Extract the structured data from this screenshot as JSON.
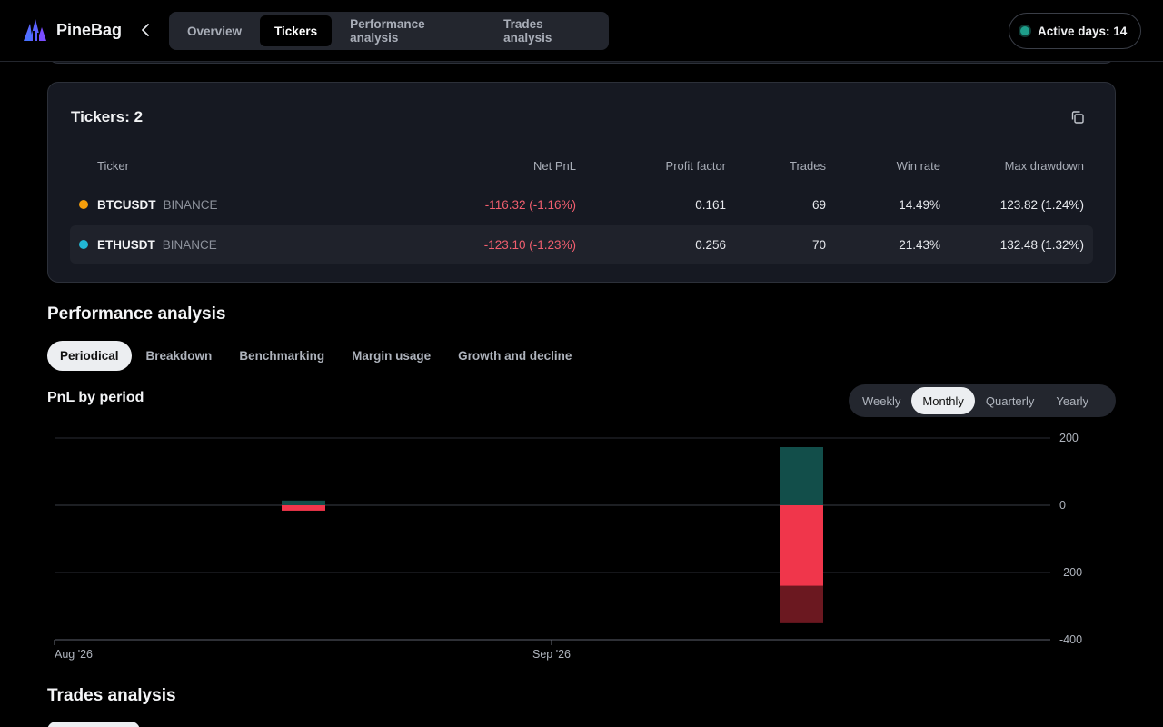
{
  "header": {
    "brand": "PineBag",
    "tabs": [
      {
        "label": "Overview",
        "active": false
      },
      {
        "label": "Tickers",
        "active": true
      },
      {
        "label": "Performance analysis",
        "active": false
      },
      {
        "label": "Trades analysis",
        "active": false
      }
    ],
    "active_days_label": "Active days: 14"
  },
  "tickers": {
    "title": "Tickers: 2",
    "columns": [
      "Ticker",
      "Net PnL",
      "Profit factor",
      "Trades",
      "Win rate",
      "Max drawdown"
    ],
    "rows": [
      {
        "symbol": "BTCUSDT",
        "exchange": "BINANCE",
        "dot_color": "#f59e0b",
        "net_pnl": "-116.32 (-1.16%)",
        "profit_factor": "0.161",
        "trades": "69",
        "win_rate": "14.49%",
        "max_drawdown": "123.82 (1.24%)"
      },
      {
        "symbol": "ETHUSDT",
        "exchange": "BINANCE",
        "dot_color": "#22b8d6",
        "net_pnl": "-123.10 (-1.23%)",
        "profit_factor": "0.256",
        "trades": "70",
        "win_rate": "21.43%",
        "max_drawdown": "132.48 (1.32%)"
      }
    ]
  },
  "performance": {
    "title": "Performance analysis",
    "tabs": [
      {
        "label": "Periodical",
        "active": true
      },
      {
        "label": "Breakdown",
        "active": false
      },
      {
        "label": "Benchmarking",
        "active": false
      },
      {
        "label": "Margin usage",
        "active": false
      },
      {
        "label": "Growth and decline",
        "active": false
      }
    ],
    "chart_title": "PnL by period",
    "periods": [
      {
        "label": "Weekly",
        "active": false
      },
      {
        "label": "Monthly",
        "active": true
      },
      {
        "label": "Quarterly",
        "active": false
      },
      {
        "label": "Yearly",
        "active": false
      }
    ]
  },
  "chart_data": {
    "type": "bar",
    "categories": [
      "Aug '26",
      "Sep '26"
    ],
    "x_tick_labels": [
      "Aug '26",
      "Sep '26"
    ],
    "y_ticks": [
      200,
      0,
      -200,
      -400
    ],
    "ylim": [
      -400,
      200
    ],
    "legend": "none",
    "grid": true,
    "colors": {
      "profit": "#124e4a",
      "loss": "#f0364b",
      "loss_dark": "#6b1820"
    },
    "bars": [
      {
        "period": "Aug '26",
        "profit": 14,
        "loss": -16,
        "loss_extra": 0
      },
      {
        "period": "Sep '26",
        "profit": 173,
        "loss": -240,
        "loss_extra": -111
      }
    ]
  },
  "trades_analysis": {
    "title": "Trades analysis"
  }
}
